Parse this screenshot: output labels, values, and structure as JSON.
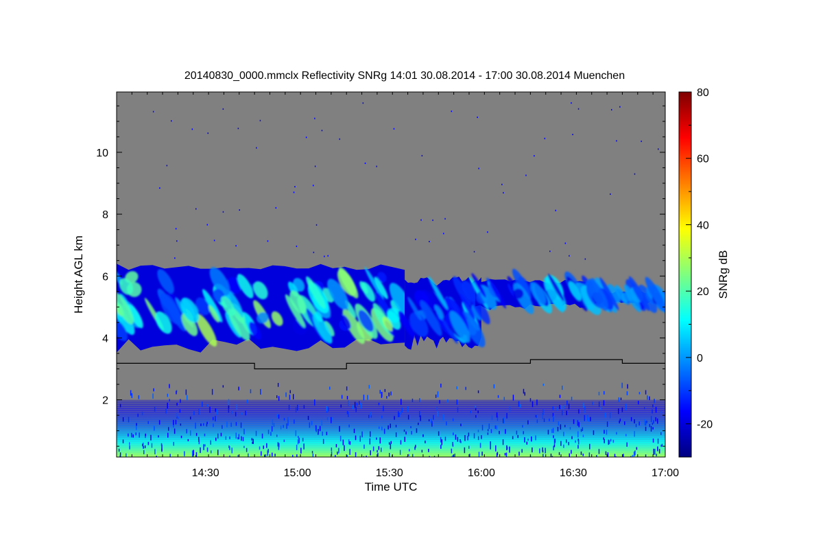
{
  "chart_data": {
    "type": "heatmap",
    "title": "20140830_0000.mmclx Reflectivity SNRg   14:01 30.08.2014 - 17:00 30.08.2014 Muenchen",
    "xlabel": "Time UTC",
    "ylabel": "Height AGL km",
    "x_range": [
      "14:01",
      "17:00"
    ],
    "ylim": [
      0.15,
      11.95
    ],
    "x_ticks": [
      "14:30",
      "15:00",
      "15:30",
      "16:00",
      "16:30",
      "17:00"
    ],
    "y_ticks": [
      "2",
      "4",
      "6",
      "8",
      "10"
    ],
    "colorbar": {
      "label": "SNRg dB",
      "range": [
        -30,
        80
      ],
      "ticks": [
        "-20",
        "0",
        "20",
        "40",
        "60",
        "80"
      ],
      "colormap": "jet"
    },
    "background_color": "#808080",
    "line_series": {
      "name": "",
      "color": "#000000",
      "points": [
        [
          "14:01",
          3.18
        ],
        [
          "14:46",
          3.18
        ],
        [
          "14:46",
          3.0
        ],
        [
          "15:16",
          3.0
        ],
        [
          "15:16",
          3.18
        ],
        [
          "16:16",
          3.18
        ],
        [
          "16:16",
          3.3
        ],
        [
          "16:46",
          3.3
        ],
        [
          "16:46",
          3.18
        ],
        [
          "17:00",
          3.18
        ]
      ]
    },
    "cloud_layers": [
      {
        "start": "14:01",
        "end": "15:35",
        "base_km": 3.5,
        "top_km": 6.4,
        "snr_range_db": [
          -20,
          30
        ]
      },
      {
        "start": "15:35",
        "end": "16:00",
        "base_km": 3.6,
        "top_km": 6.0,
        "snr_range_db": [
          -20,
          10
        ]
      },
      {
        "start": "15:58",
        "end": "16:37",
        "base_km": 4.9,
        "top_km": 5.9,
        "snr_range_db": [
          -20,
          10
        ]
      },
      {
        "start": "16:37",
        "end": "17:00",
        "base_km": 5.1,
        "top_km": 5.5,
        "snr_range_db": [
          -20,
          5
        ]
      }
    ],
    "boundary_layer": {
      "start": "14:01",
      "end": "17:00",
      "base_km": 0.15,
      "top_km": 2.0,
      "snr_range_db": [
        -20,
        30
      ]
    }
  }
}
